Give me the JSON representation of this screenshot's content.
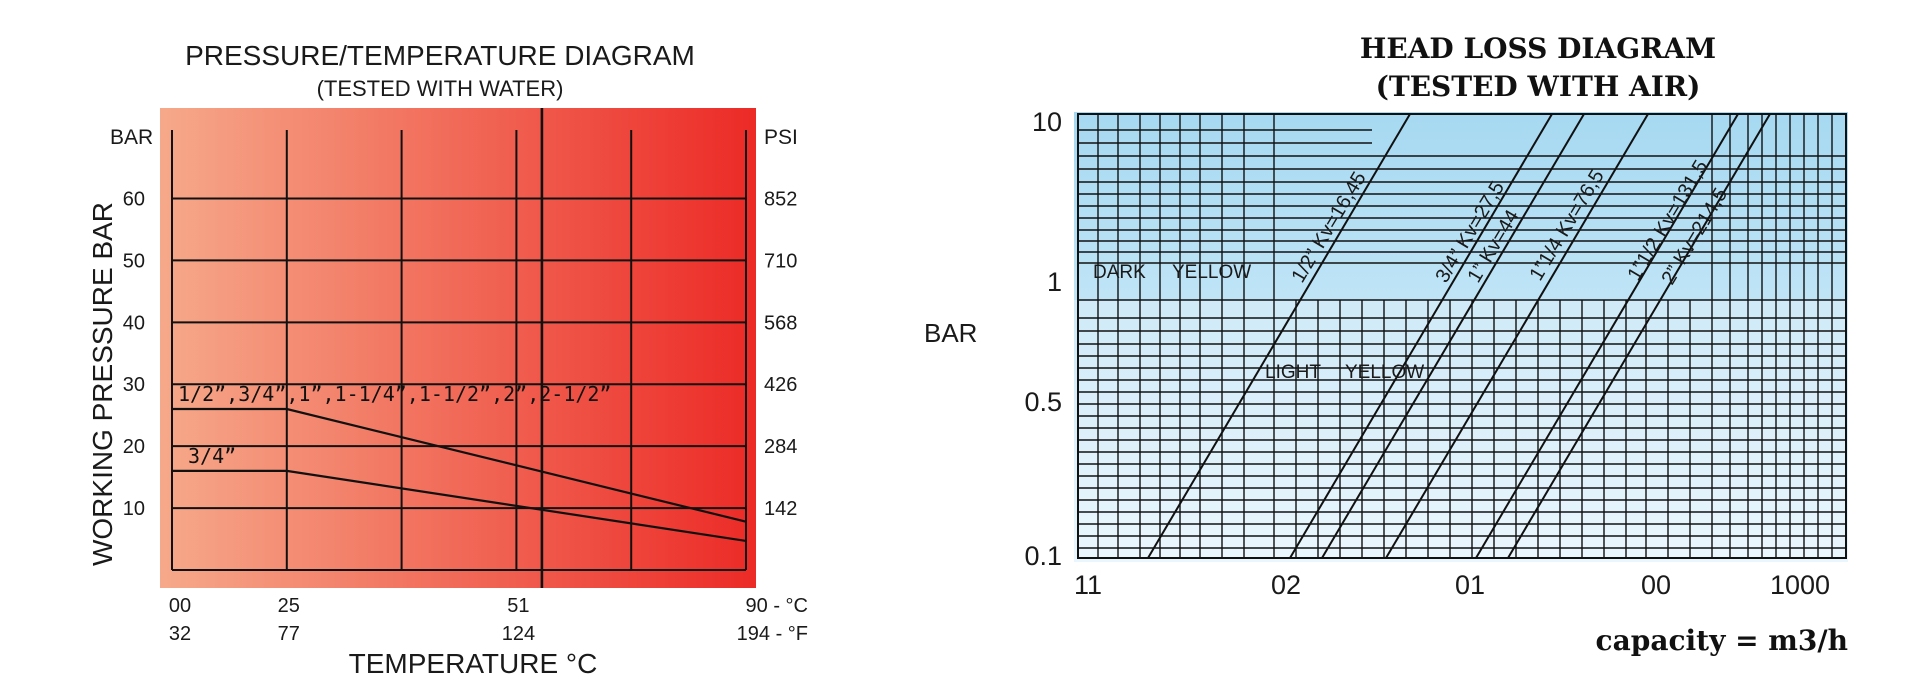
{
  "chart_data": [
    {
      "type": "line",
      "title": "PRESSURE/TEMPERATURE DIAGRAM",
      "subtitle": "(TESTED WITH WATER)",
      "xlabel": "TEMPERATURE °C",
      "ylabel": "WORKING PRESSURE BAR",
      "y_unit_left": "BAR",
      "y_unit_right": "PSI",
      "ylim": [
        0,
        73
      ],
      "xlim": [
        0,
        90
      ],
      "grid": true,
      "y_ticks": [
        {
          "bar": 10,
          "bar_label": "10",
          "psi_label": "142"
        },
        {
          "bar": 20,
          "bar_label": "20",
          "psi_label": "284"
        },
        {
          "bar": 30,
          "bar_label": "30",
          "psi_label": "426"
        },
        {
          "bar": 40,
          "bar_label": "40",
          "psi_label": "568"
        },
        {
          "bar": 50,
          "bar_label": "50",
          "psi_label": "710"
        },
        {
          "bar": 60,
          "bar_label": "60",
          "psi_label": "852"
        }
      ],
      "x_gridlines": [
        0,
        18,
        36,
        54,
        72,
        90
      ],
      "x_ticks": [
        {
          "value": 0,
          "celsius": "00",
          "fahrenheit": "32"
        },
        {
          "value": 18,
          "celsius": "25",
          "fahrenheit": "77"
        },
        {
          "value": 54,
          "celsius": "51",
          "fahrenheit": "124"
        },
        {
          "value": 90,
          "celsius": "90 - °C",
          "fahrenheit": "194 - °F"
        }
      ],
      "marker_x": 58,
      "background_gradient": [
        "#f6a98a",
        "#ec2a26"
      ],
      "series": [
        {
          "name": "1/2”,3/4”,1”,1-1/4”,1-1/2”,2”,2-1/2”",
          "x": [
            0,
            18,
            90
          ],
          "y": [
            26,
            26,
            7.8
          ]
        },
        {
          "name": "3/4”",
          "x": [
            0,
            18,
            90
          ],
          "y": [
            16,
            16,
            4.7
          ]
        }
      ]
    },
    {
      "type": "line",
      "title": "HEAD LOSS DIAGRAM",
      "subtitle": "(TESTED WITH AIR)",
      "xlabel": "capacity = m3/h",
      "ylabel": "BAR",
      "y_scale": "log",
      "ylim": [
        0.1,
        10
      ],
      "grid": true,
      "y_ticks": [
        {
          "value": 10,
          "label": "10"
        },
        {
          "value": 1,
          "label": "1"
        },
        {
          "value": 0.5,
          "label": "0.5"
        },
        {
          "value": 0.1,
          "label": "0.1"
        }
      ],
      "x_tick_labels": [
        "11",
        "02",
        "01",
        "00",
        "1000"
      ],
      "zones": [
        {
          "label_a": "DARK",
          "label_b": "YELLOW",
          "color": "#a9dcf3"
        },
        {
          "label_a": "LIGHT",
          "label_b": "YELLOW",
          "color": "#d7eefa"
        }
      ],
      "series": [
        {
          "name": "1/2” Kv=16,45"
        },
        {
          "name": "3/4” Kv=27,5"
        },
        {
          "name": "1” Kv=44"
        },
        {
          "name": "1”1/4 Kv=76,5"
        },
        {
          "name": "1”1/2 Kv=131,5"
        },
        {
          "name": "2” Kv=214,5"
        }
      ]
    }
  ]
}
